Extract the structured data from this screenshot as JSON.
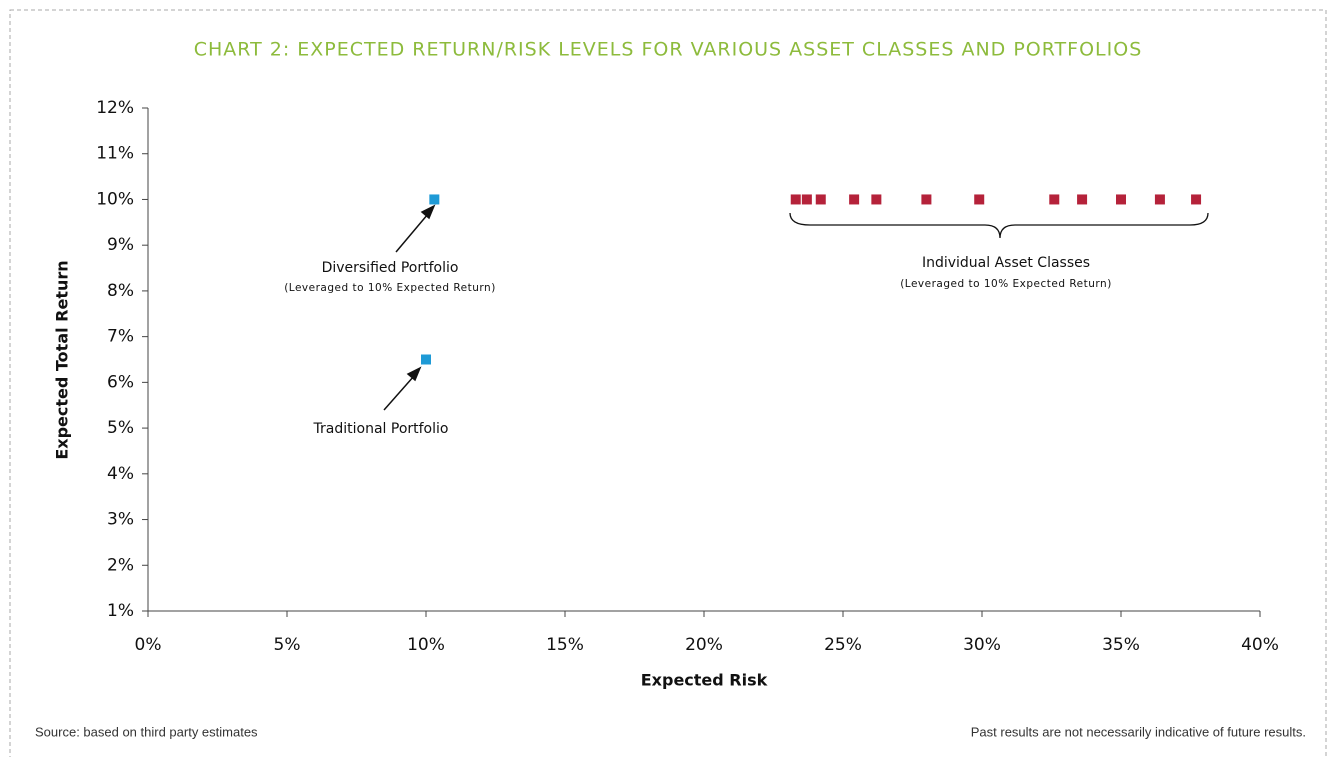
{
  "chart_data": {
    "type": "scatter",
    "title": "CHART 2: EXPECTED RETURN/RISK LEVELS FOR VARIOUS ASSET CLASSES AND PORTFOLIOS",
    "x_label": "Expected Risk",
    "y_label": "Expected Total Return",
    "xlim": [
      0,
      40
    ],
    "xticks": [
      {
        "value": 0,
        "label": "0%"
      },
      {
        "value": 5,
        "label": "5%"
      },
      {
        "value": 10,
        "label": "10%"
      },
      {
        "value": 15,
        "label": "15%"
      },
      {
        "value": 20,
        "label": "20%"
      },
      {
        "value": 25,
        "label": "25%"
      },
      {
        "value": 30,
        "label": "30%"
      },
      {
        "value": 35,
        "label": "35%"
      },
      {
        "value": 40,
        "label": "40%"
      }
    ],
    "ylim": [
      1,
      12
    ],
    "yticks": [
      {
        "value": 1,
        "label": "1%"
      },
      {
        "value": 2,
        "label": "2%"
      },
      {
        "value": 3,
        "label": "3%"
      },
      {
        "value": 4,
        "label": "4%"
      },
      {
        "value": 5,
        "label": "5%"
      },
      {
        "value": 6,
        "label": "6%"
      },
      {
        "value": 7,
        "label": "7%"
      },
      {
        "value": 8,
        "label": "8%"
      },
      {
        "value": 9,
        "label": "9%"
      },
      {
        "value": 10,
        "label": "10%"
      },
      {
        "value": 11,
        "label": "11%"
      },
      {
        "value": 12,
        "label": "12%"
      }
    ],
    "series": [
      {
        "color": "#1e9ad6",
        "x": [
          10.3
        ],
        "values": [
          10
        ]
      },
      {
        "color": "#1e9ad6",
        "x": [
          10.0
        ],
        "values": [
          6.5
        ]
      },
      {
        "color": "#b5223a",
        "x": [
          23.3,
          23.7,
          24.2,
          25.4,
          26.2,
          28.0,
          29.9,
          32.6,
          33.6,
          35.0,
          36.4,
          37.7
        ],
        "values": [
          10,
          10,
          10,
          10,
          10,
          10,
          10,
          10,
          10,
          10,
          10,
          10
        ]
      }
    ],
    "annotations": [
      {
        "text": "Diversified Portfolio",
        "subtext": "(Leveraged to 10% Expected Return)"
      },
      {
        "text": "Traditional Portfolio"
      },
      {
        "text": "Individual Asset Classes",
        "subtext": "(Leveraged to 10% Expected Return)"
      }
    ],
    "source": "Source: based on third party estimates",
    "disclaimer": "Past results are not necessarily indicative of future results."
  }
}
